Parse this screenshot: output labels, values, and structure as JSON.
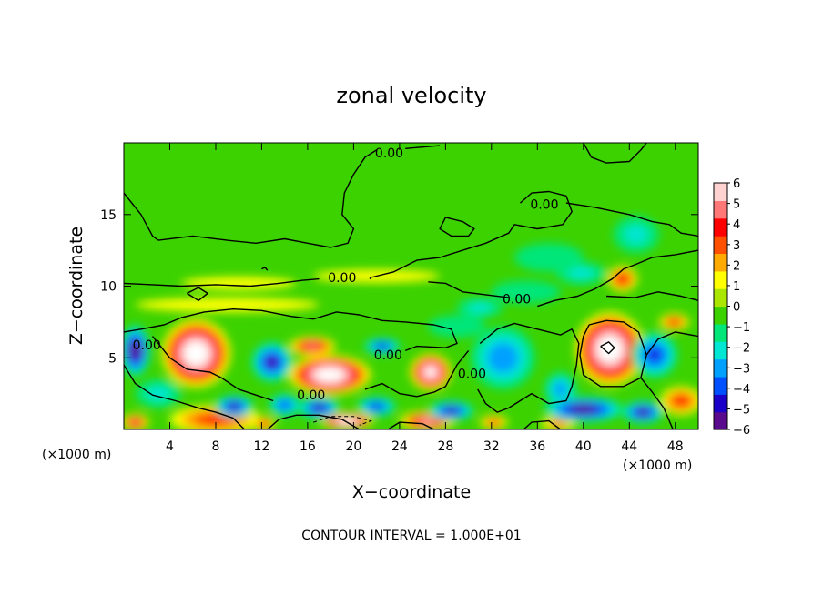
{
  "chart_data": {
    "type": "heatmap",
    "title": "zonal velocity",
    "xlabel": "X−coordinate",
    "ylabel": "Z−coordinate",
    "x_unit_left": "(×1000 m)",
    "x_unit_right": "(×1000 m)",
    "xlim": [
      0,
      50
    ],
    "ylim": [
      0,
      20
    ],
    "x_ticks": [
      4,
      8,
      12,
      16,
      20,
      24,
      28,
      32,
      36,
      40,
      44,
      48
    ],
    "x_tick_labels": [
      "4",
      "8",
      "12",
      "16",
      "20",
      "24",
      "28",
      "32",
      "36",
      "40",
      "44",
      "48"
    ],
    "y_ticks": [
      5,
      10,
      15
    ],
    "y_tick_labels": [
      "5",
      "10",
      "15"
    ],
    "footer": "CONTOUR INTERVAL = 1.000E+01",
    "colorbar": {
      "min": -6,
      "max": 6,
      "tick_values": [
        6,
        5,
        4,
        3,
        2,
        1,
        0,
        -1,
        -2,
        -3,
        -4,
        -5,
        -6
      ],
      "tick_labels": [
        "6",
        "5",
        "4",
        "3",
        "2",
        "1",
        "0",
        "−1",
        "−2",
        "−3",
        "−4",
        "−5",
        "−6"
      ],
      "colors": [
        "#5a0a8c",
        "#1a00c8",
        "#0050ff",
        "#00a0ff",
        "#00e6d2",
        "#00e678",
        "#3cd200",
        "#aae600",
        "#ffff00",
        "#ffaa00",
        "#ff5000",
        "#ff0000",
        "#ff7878",
        "#ffd2d2"
      ]
    },
    "contour_labels": [
      {
        "text": "0.00",
        "x": 23.1,
        "z": 19.3
      },
      {
        "text": "0.00",
        "x": 36.6,
        "z": 15.7
      },
      {
        "text": "0.00",
        "x": 19.0,
        "z": 10.6
      },
      {
        "text": "0.00",
        "x": 34.2,
        "z": 9.1
      },
      {
        "text": "0.00",
        "x": 2.0,
        "z": 5.9
      },
      {
        "text": "0.00",
        "x": 23.0,
        "z": 5.2
      },
      {
        "text": "0.00",
        "x": 30.3,
        "z": 3.9
      },
      {
        "text": "0.00",
        "x": 16.3,
        "z": 2.4
      }
    ],
    "blobs": [
      {
        "x": 6.3,
        "z": 5.3,
        "rx": 3.0,
        "rz": 2.4,
        "value": 9
      },
      {
        "x": 17.9,
        "z": 3.8,
        "rx": 3.6,
        "rz": 1.4,
        "value": 9
      },
      {
        "x": 26.7,
        "z": 4.0,
        "rx": 1.8,
        "rz": 1.3,
        "value": 8
      },
      {
        "x": 16.4,
        "z": 5.8,
        "rx": 2.0,
        "rz": 0.7,
        "value": 5.5
      },
      {
        "x": 42.3,
        "z": 5.6,
        "rx": 3.0,
        "rz": 2.6,
        "value": 9
      },
      {
        "x": 43.4,
        "z": 10.5,
        "rx": 1.3,
        "rz": 0.9,
        "value": 4.5
      },
      {
        "x": 47.9,
        "z": 7.5,
        "rx": 1.3,
        "rz": 0.6,
        "value": 4
      },
      {
        "x": 48.5,
        "z": 2.0,
        "rx": 1.8,
        "rz": 1.0,
        "value": 4
      },
      {
        "x": 19.4,
        "z": 0.6,
        "rx": 2.3,
        "rz": 0.6,
        "value": 9
      },
      {
        "x": 8.0,
        "z": 0.7,
        "rx": 4.0,
        "rz": 1.0,
        "value": 4
      },
      {
        "x": 26.4,
        "z": 0.6,
        "rx": 2.4,
        "rz": 0.7,
        "value": 6
      },
      {
        "x": 1.0,
        "z": 0.5,
        "rx": 1.2,
        "rz": 0.6,
        "value": 5
      },
      {
        "x": 12.2,
        "z": 0.4,
        "rx": 1.0,
        "rz": 0.5,
        "value": 4
      },
      {
        "x": 10.0,
        "z": 10.2,
        "rx": 5.0,
        "rz": 0.45,
        "value": 1.8
      },
      {
        "x": 22.0,
        "z": 10.7,
        "rx": 5.5,
        "rz": 0.45,
        "value": 1.8
      },
      {
        "x": 9.0,
        "z": 8.7,
        "rx": 8.0,
        "rz": 0.5,
        "value": 1.4
      },
      {
        "x": 32.2,
        "z": 0.5,
        "rx": 1.2,
        "rz": 0.5,
        "value": 3.5
      },
      {
        "x": 37.8,
        "z": 0.4,
        "rx": 1.5,
        "rz": 0.5,
        "value": 3
      },
      {
        "x": 1.0,
        "z": 5.5,
        "rx": 1.3,
        "rz": 1.8,
        "value": -7.5
      },
      {
        "x": 12.9,
        "z": 4.7,
        "rx": 1.8,
        "rz": 1.4,
        "value": -6
      },
      {
        "x": 22.5,
        "z": 5.8,
        "rx": 1.6,
        "rz": 0.6,
        "value": -5
      },
      {
        "x": 9.6,
        "z": 1.6,
        "rx": 1.7,
        "rz": 0.8,
        "value": -6
      },
      {
        "x": 14.0,
        "z": 1.7,
        "rx": 1.4,
        "rz": 0.8,
        "value": -4.5
      },
      {
        "x": 17.0,
        "z": 1.5,
        "rx": 1.8,
        "rz": 0.8,
        "value": -6
      },
      {
        "x": 22.0,
        "z": 1.6,
        "rx": 1.7,
        "rz": 0.7,
        "value": -5
      },
      {
        "x": 28.5,
        "z": 1.3,
        "rx": 2.0,
        "rz": 0.7,
        "value": -6
      },
      {
        "x": 33.0,
        "z": 5.0,
        "rx": 2.8,
        "rz": 2.2,
        "value": -3.8
      },
      {
        "x": 38.0,
        "z": 2.8,
        "rx": 1.4,
        "rz": 1.2,
        "value": -3.5
      },
      {
        "x": 40.0,
        "z": 1.4,
        "rx": 3.5,
        "rz": 0.9,
        "value": -7
      },
      {
        "x": 46.2,
        "z": 5.2,
        "rx": 2.0,
        "rz": 1.6,
        "value": -5
      },
      {
        "x": 45.2,
        "z": 1.2,
        "rx": 1.8,
        "rz": 0.8,
        "value": -6.5
      },
      {
        "x": 44.6,
        "z": 13.6,
        "rx": 2.0,
        "rz": 1.3,
        "value": -2
      },
      {
        "x": 37.0,
        "z": 12.0,
        "rx": 3.0,
        "rz": 1.0,
        "value": -1.6
      },
      {
        "x": 39.8,
        "z": 10.9,
        "rx": 2.2,
        "rz": 0.8,
        "value": -2
      },
      {
        "x": 35.0,
        "z": 9.6,
        "rx": 3.0,
        "rz": 0.8,
        "value": -1.6
      },
      {
        "x": 31.0,
        "z": 8.5,
        "rx": 2.0,
        "rz": 0.7,
        "value": -2
      },
      {
        "x": 20.5,
        "z": 6.5,
        "rx": 6.0,
        "rz": 1.2,
        "value": -0.8
      },
      {
        "x": 29.0,
        "z": 7.2,
        "rx": 2.5,
        "rz": 0.8,
        "value": -1.8
      },
      {
        "x": 3.0,
        "z": 2.5,
        "rx": 2.0,
        "rz": 1.0,
        "value": -2
      },
      {
        "x": 9.0,
        "z": 9.0,
        "rx": 3.0,
        "rz": 0.8,
        "value": -0.6
      },
      {
        "x": 49.0,
        "z": 16.5,
        "rx": 1.5,
        "rz": 1.0,
        "value": -0.7
      }
    ],
    "contours_zero": [
      [
        [
          0,
          16.5
        ],
        [
          1.5,
          15.0
        ],
        [
          2.5,
          13.5
        ],
        [
          3.0,
          13.2
        ]
      ],
      [
        [
          3.0,
          13.2
        ],
        [
          6.0,
          13.5
        ],
        [
          9.0,
          13.2
        ],
        [
          11.5,
          13.0
        ],
        [
          14.0,
          13.3
        ],
        [
          16.0,
          13.0
        ],
        [
          18.0,
          12.7
        ],
        [
          19.5,
          13.0
        ],
        [
          20.0,
          14.0
        ],
        [
          19.0,
          15.0
        ],
        [
          19.2,
          16.5
        ],
        [
          20.0,
          17.8
        ],
        [
          21.0,
          19.0
        ],
        [
          22.0,
          19.5
        ]
      ],
      [
        [
          24.5,
          19.6
        ],
        [
          26.0,
          19.7
        ],
        [
          27.5,
          19.8
        ]
      ],
      [
        [
          40.0,
          20.0
        ],
        [
          40.7,
          19.0
        ],
        [
          42.0,
          18.6
        ],
        [
          44.0,
          18.7
        ],
        [
          45.0,
          19.5
        ],
        [
          45.5,
          20.0
        ]
      ],
      [
        [
          34.5,
          15.8
        ],
        [
          35.5,
          16.5
        ],
        [
          37.0,
          16.6
        ],
        [
          38.5,
          16.3
        ],
        [
          39.0,
          15.2
        ],
        [
          38.2,
          14.3
        ],
        [
          36.0,
          14.0
        ],
        [
          34.0,
          14.3
        ],
        [
          33.5,
          13.7
        ],
        [
          31.5,
          13.0
        ],
        [
          29.5,
          12.5
        ],
        [
          27.5,
          12.0
        ],
        [
          25.5,
          11.8
        ],
        [
          23.5,
          11.0
        ],
        [
          21.5,
          10.6
        ],
        [
          21.4,
          10.5
        ]
      ],
      [
        [
          17.0,
          10.5
        ],
        [
          15.5,
          10.4
        ],
        [
          13.5,
          10.2
        ],
        [
          11.0,
          10.0
        ],
        [
          8.0,
          10.1
        ],
        [
          5.0,
          10.0
        ],
        [
          2.5,
          10.1
        ],
        [
          0,
          10.2
        ]
      ],
      [
        [
          38.5,
          15.8
        ],
        [
          41.0,
          15.5
        ],
        [
          44.0,
          15.0
        ],
        [
          46.0,
          14.5
        ],
        [
          47.5,
          14.3
        ],
        [
          48.5,
          13.7
        ],
        [
          50.0,
          13.5
        ]
      ],
      [
        [
          28.0,
          14.8
        ],
        [
          29.5,
          14.5
        ],
        [
          30.5,
          14.0
        ],
        [
          30.0,
          13.5
        ],
        [
          28.5,
          13.5
        ],
        [
          27.5,
          14.0
        ],
        [
          28.0,
          14.8
        ]
      ],
      [
        [
          5.5,
          9.5
        ],
        [
          6.5,
          9.9
        ],
        [
          7.3,
          9.5
        ],
        [
          6.5,
          9.0
        ],
        [
          5.5,
          9.5
        ]
      ],
      [
        [
          0,
          6.8
        ],
        [
          1.5,
          7.0
        ],
        [
          3.5,
          7.3
        ],
        [
          5.0,
          7.8
        ],
        [
          7.0,
          8.2
        ],
        [
          9.5,
          8.4
        ],
        [
          12.0,
          8.3
        ],
        [
          14.5,
          7.9
        ],
        [
          16.5,
          7.7
        ],
        [
          18.5,
          8.2
        ],
        [
          20.5,
          8.0
        ],
        [
          22.5,
          7.6
        ],
        [
          24.5,
          7.5
        ],
        [
          27.0,
          7.3
        ],
        [
          28.5,
          7.0
        ],
        [
          29.0,
          6.0
        ],
        [
          28.0,
          5.7
        ],
        [
          25.5,
          5.8
        ],
        [
          24.5,
          5.5
        ]
      ],
      [
        [
          26.5,
          10.3
        ],
        [
          28.0,
          10.2
        ],
        [
          29.5,
          9.6
        ],
        [
          31.5,
          9.4
        ],
        [
          33.5,
          9.2
        ]
      ],
      [
        [
          36.0,
          8.6
        ],
        [
          37.5,
          9.0
        ],
        [
          39.5,
          9.3
        ],
        [
          41.0,
          9.8
        ],
        [
          42.5,
          10.5
        ],
        [
          43.5,
          11.2
        ],
        [
          44.5,
          11.5
        ],
        [
          46.0,
          12.0
        ],
        [
          48.0,
          12.2
        ],
        [
          50.0,
          12.5
        ]
      ],
      [
        [
          42.0,
          9.3
        ],
        [
          44.5,
          9.2
        ],
        [
          46.5,
          9.6
        ],
        [
          48.5,
          9.3
        ],
        [
          50.0,
          9.0
        ]
      ],
      [
        [
          31.0,
          6.0
        ],
        [
          32.5,
          7.0
        ],
        [
          34.0,
          7.4
        ],
        [
          36.0,
          7.0
        ],
        [
          38.0,
          6.6
        ],
        [
          39.0,
          7.0
        ],
        [
          39.6,
          6.0
        ],
        [
          39.4,
          4.5
        ],
        [
          39.0,
          3.0
        ],
        [
          38.5,
          2.0
        ],
        [
          37.0,
          1.8
        ],
        [
          35.5,
          2.5
        ],
        [
          34.5,
          2.0
        ],
        [
          33.5,
          1.5
        ],
        [
          32.5,
          1.2
        ],
        [
          31.5,
          1.8
        ],
        [
          30.8,
          2.8
        ]
      ],
      [
        [
          30.0,
          5.5
        ],
        [
          29.0,
          4.5
        ],
        [
          28.0,
          3.0
        ],
        [
          27.0,
          2.6
        ],
        [
          25.5,
          2.3
        ],
        [
          24.0,
          2.5
        ],
        [
          22.5,
          3.2
        ],
        [
          21.0,
          2.8
        ]
      ],
      [
        [
          13.0,
          2.0
        ],
        [
          11.5,
          2.4
        ],
        [
          10.0,
          2.8
        ],
        [
          8.5,
          3.6
        ],
        [
          7.5,
          4.0
        ],
        [
          5.5,
          4.2
        ],
        [
          4.0,
          5.0
        ],
        [
          3.0,
          6.0
        ],
        [
          2.5,
          6.5
        ]
      ],
      [
        [
          0,
          4.5
        ],
        [
          1.0,
          3.2
        ],
        [
          2.5,
          2.4
        ],
        [
          4.5,
          2.0
        ],
        [
          6.5,
          1.5
        ],
        [
          8.0,
          1.2
        ],
        [
          9.5,
          0.8
        ],
        [
          10.5,
          0
        ]
      ],
      [
        [
          12.5,
          0
        ],
        [
          13.5,
          0.7
        ],
        [
          15.0,
          1.0
        ],
        [
          17.0,
          1.0
        ],
        [
          19.0,
          0.7
        ],
        [
          20.5,
          0
        ]
      ],
      [
        [
          40.5,
          7.3
        ],
        [
          42.0,
          7.6
        ],
        [
          43.5,
          7.5
        ],
        [
          44.8,
          6.8
        ],
        [
          45.5,
          5.2
        ],
        [
          45.0,
          3.6
        ],
        [
          43.5,
          3.0
        ],
        [
          41.5,
          3.0
        ],
        [
          40.0,
          3.8
        ],
        [
          39.7,
          5.2
        ],
        [
          40.0,
          6.5
        ],
        [
          40.5,
          7.3
        ]
      ],
      [
        [
          45.5,
          5.2
        ],
        [
          46.5,
          6.3
        ],
        [
          48.0,
          6.8
        ],
        [
          50.0,
          6.5
        ]
      ],
      [
        [
          45.0,
          3.6
        ],
        [
          46.0,
          2.6
        ],
        [
          47.0,
          1.5
        ],
        [
          47.8,
          0
        ]
      ],
      [
        [
          23.0,
          0
        ],
        [
          24.0,
          0.5
        ],
        [
          26.0,
          0.4
        ],
        [
          27.0,
          0
        ]
      ],
      [
        [
          34.8,
          0
        ],
        [
          35.5,
          0.5
        ],
        [
          37.0,
          0.6
        ],
        [
          38.0,
          0
        ]
      ],
      [
        [
          41.5,
          5.8
        ],
        [
          42.2,
          6.1
        ],
        [
          42.7,
          5.7
        ],
        [
          42.2,
          5.3
        ],
        [
          41.5,
          5.8
        ]
      ],
      [
        [
          12.0,
          11.2
        ],
        [
          12.3,
          11.3
        ],
        [
          12.5,
          11.1
        ]
      ]
    ],
    "contours_dashed": [
      [
        [
          16.5,
          0.5
        ],
        [
          18.0,
          0.9
        ],
        [
          20.0,
          0.9
        ],
        [
          21.5,
          0.6
        ],
        [
          20.5,
          0.3
        ]
      ]
    ]
  }
}
